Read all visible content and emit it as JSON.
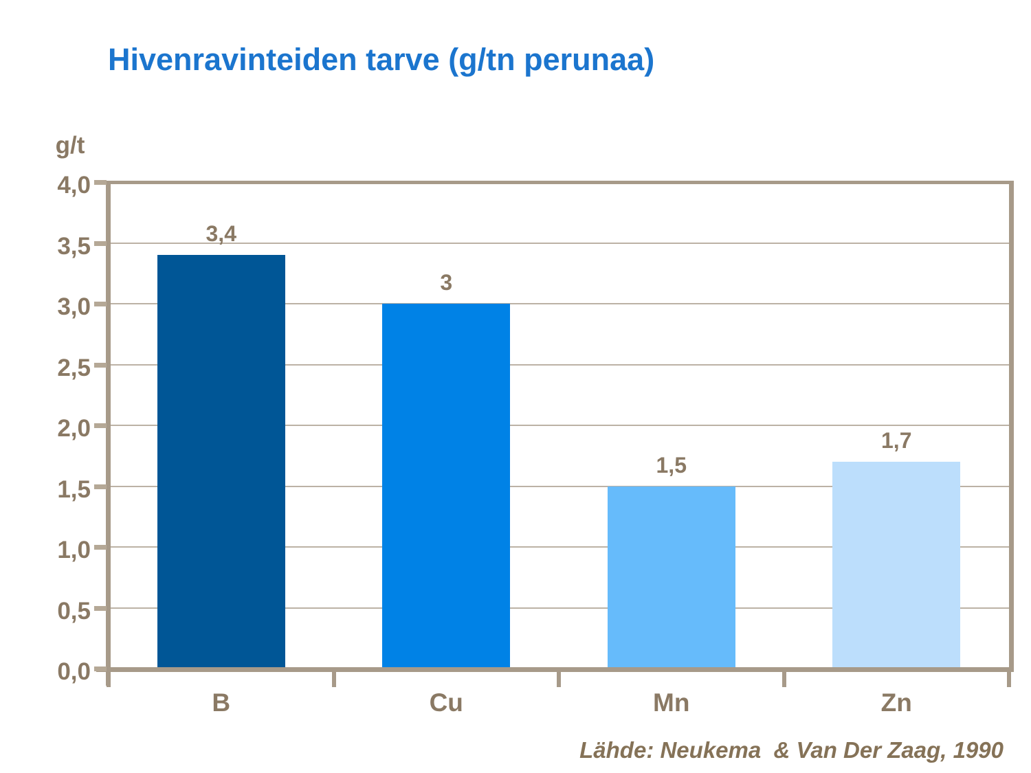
{
  "title": "Hivenravinteiden tarve (g/tn perunaa)",
  "source": "Lähde: Neukema  & Van Der Zaag, 1990",
  "colors": {
    "title_blue": "#1B75CE",
    "label_taupe": "#8A7964",
    "axis_taupe": "#A79A89",
    "gridline_taupe": "#BCB2A5"
  },
  "chart_data": {
    "type": "bar",
    "title": "Hivenravinteiden tarve (g/tn perunaa)",
    "ylabel": "g/t",
    "xlabel": "",
    "categories": [
      "B",
      "Cu",
      "Mn",
      "Zn"
    ],
    "values": [
      3.4,
      3,
      1.5,
      1.7
    ],
    "value_labels": [
      "3,4",
      "3",
      "1,5",
      "1,7"
    ],
    "bar_colors": [
      "#005696",
      "#0082E6",
      "#66BBFB",
      "#BCDEFC"
    ],
    "ylim": [
      0,
      4
    ],
    "yticks": [
      0,
      0.5,
      1,
      1.5,
      2,
      2.5,
      3,
      3.5,
      4
    ],
    "ytick_labels": [
      "0,0",
      "0,5",
      "1,0",
      "1,5",
      "2,0",
      "2,5",
      "3,0",
      "3,5",
      "4,0"
    ],
    "grid": true,
    "legend_position": "none",
    "source_note": "Lähde: Neukema & Van Der Zaag, 1990"
  }
}
